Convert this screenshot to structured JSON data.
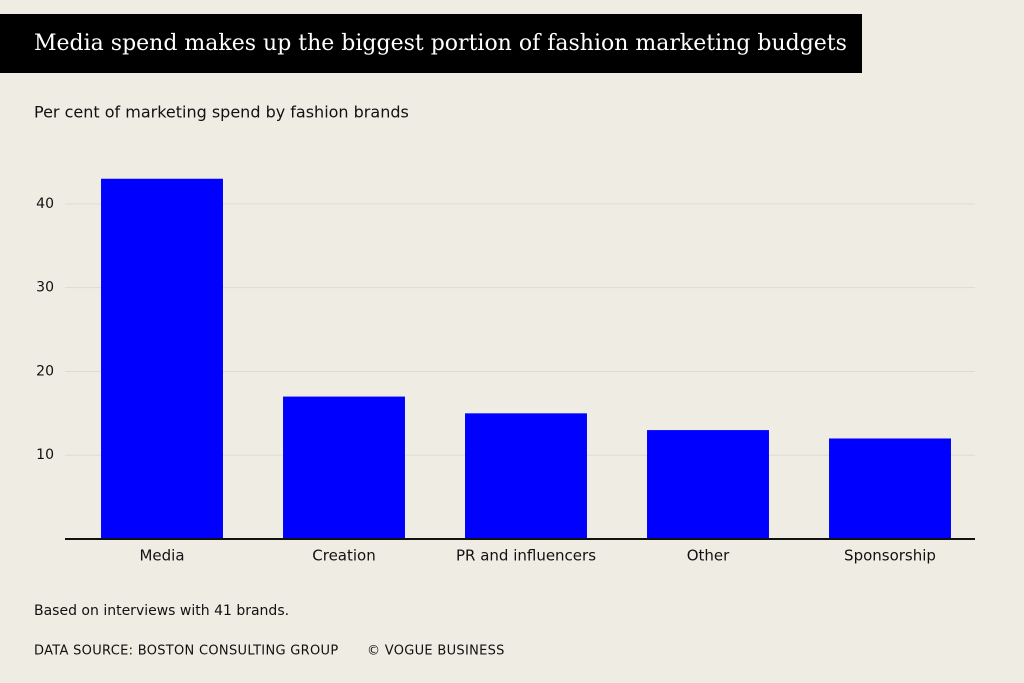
{
  "chart_data": {
    "type": "bar",
    "title": "Media spend makes up the biggest portion of fashion marketing budgets",
    "subtitle": "Per cent of marketing spend by fashion brands",
    "categories": [
      "Media",
      "Creation",
      "PR and influencers",
      "Other",
      "Sponsorship"
    ],
    "values": [
      43,
      17,
      15,
      13,
      12
    ],
    "color": "#0000ff",
    "ylim": [
      0,
      45
    ],
    "yticks": [
      10,
      20,
      30,
      40
    ],
    "grid": true,
    "note": "Based on interviews with 41 brands.",
    "source": "DATA SOURCE: BOSTON CONSULTING GROUP",
    "credit": "© VOGUE BUSINESS"
  }
}
